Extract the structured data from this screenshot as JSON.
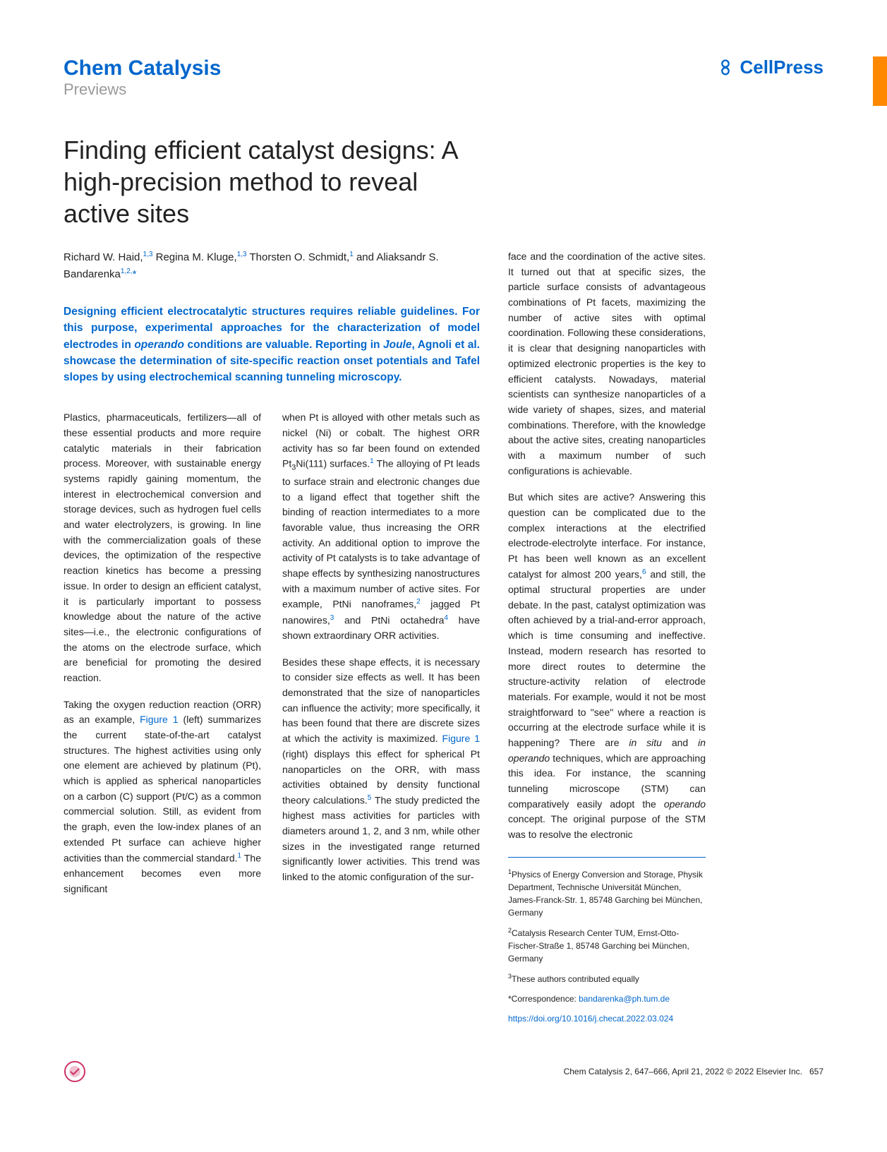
{
  "journal": {
    "name": "Chem Catalysis",
    "section": "Previews"
  },
  "publisher": "CellPress",
  "title": "Finding efficient catalyst designs: A high-precision method to reveal active sites",
  "authors_html": "Richard W. Haid,<sup>1,3</sup> Regina M. Kluge,<sup>1,3</sup> Thorsten O. Schmidt,<sup>1</sup> and Aliaksandr S. Bandarenka<sup>1,2,</sup><span class='corr'>*</span>",
  "abstract_html": "Designing efficient electrocatalytic structures requires reliable guidelines. For this purpose, experimental approaches for the characterization of model electrodes in <em>operando</em> conditions are valuable. Reporting in <em>Joule</em>, Agnoli et al. showcase the determination of site-specific reaction onset potentials and Tafel slopes by using electrochemical scanning tunneling microscopy.",
  "col1": {
    "p1": "Plastics, pharmaceuticals, fertilizers—all of these essential products and more require catalytic materials in their fabrication process. Moreover, with sustainable energy systems rapidly gaining momentum, the interest in electrochemical conversion and storage devices, such as hydrogen fuel cells and water electrolyzers, is growing. In line with the commercialization goals of these devices, the optimization of the respective reaction kinetics has become a pressing issue. In order to design an efficient catalyst, it is particularly important to possess knowledge about the nature of the active sites—i.e., the electronic configurations of the atoms on the electrode surface, which are beneficial for promoting the desired reaction.",
    "p2_html": "Taking the oxygen reduction reaction (ORR) as an example, <span class='figref'>Figure 1</span> (left) summarizes the current state-of-the-art catalyst structures. The highest activities using only one element are achieved by platinum (Pt), which is applied as spherical nanoparticles on a carbon (C) support (Pt/C) as a common commercial solution. Still, as evident from the graph, even the low-index planes of an extended Pt surface can achieve higher activities than the commercial standard.<span class='citeref'>1</span> The enhancement becomes even more significant"
  },
  "col2": {
    "p1_html": "when Pt is alloyed with other metals such as nickel (Ni) or cobalt. The highest ORR activity has so far been found on extended Pt<sub>3</sub>Ni(111) surfaces.<span class='citeref'>1</span> The alloying of Pt leads to surface strain and electronic changes due to a ligand effect that together shift the binding of reaction intermediates to a more favorable value, thus increasing the ORR activity. An additional option to improve the activity of Pt catalysts is to take advantage of shape effects by synthesizing nanostructures with a maximum number of active sites. For example, PtNi nanoframes,<span class='citeref'>2</span> jagged Pt nanowires,<span class='citeref'>3</span> and PtNi octahedra<span class='citeref'>4</span> have shown extraordinary ORR activities.",
    "p2_html": "Besides these shape effects, it is necessary to consider size effects as well. It has been demonstrated that the size of nanoparticles can influence the activity; more specifically, it has been found that there are discrete sizes at which the activity is maximized. <span class='figref'>Figure 1</span> (right) displays this effect for spherical Pt nanoparticles on the ORR, with mass activities obtained by density functional theory calculations.<span class='citeref'>5</span> The study predicted the highest mass activities for particles with diameters around 1, 2, and 3 nm, while other sizes in the investigated range returned significantly lower activities. This trend was linked to the atomic configuration of the sur-"
  },
  "rightcol": {
    "p1": "face and the coordination of the active sites. It turned out that at specific sizes, the particle surface consists of advantageous combinations of Pt facets, maximizing the number of active sites with optimal coordination. Following these considerations, it is clear that designing nanoparticles with optimized electronic properties is the key to efficient catalysts. Nowadays, material scientists can synthesize nanoparticles of a wide variety of shapes, sizes, and material combinations. Therefore, with the knowledge about the active sites, creating nanoparticles with a maximum number of such configurations is achievable.",
    "p2_html": "But which sites are active? Answering this question can be complicated due to the complex interactions at the electrified electrode-electrolyte interface. For instance, Pt has been well known as an excellent catalyst for almost 200 years,<span class='citeref'>6</span> and still, the optimal structural properties are under debate. In the past, catalyst optimization was often achieved by a trial-and-error approach, which is time consuming and ineffective. Instead, modern research has resorted to more direct routes to determine the structure-activity relation of electrode materials. For example, would it not be most straightforward to \"see\" where a reaction is occurring at the electrode surface while it is happening? There are <em>in situ</em> and <em>in operando</em> techniques, which are approaching this idea. For instance, the scanning tunneling microscope (STM) can comparatively easily adopt the <em>operando</em> concept. The original purpose of the STM was to resolve the electronic"
  },
  "affiliations": {
    "a1_html": "<sup>1</sup>Physics of Energy Conversion and Storage, Physik Department, Technische Universität München, James-Franck-Str. 1, 85748 Garching bei München, Germany",
    "a2_html": "<sup>2</sup>Catalysis Research Center TUM, Ernst-Otto-Fischer-Straße 1, 85748 Garching bei München, Germany",
    "a3_html": "<sup>3</sup>These authors contributed equally",
    "corr_html": "*Correspondence: <span class='email'>bandarenka@ph.tum.de</span>",
    "doi_html": "<span class='doi'>https://doi.org/10.1016/j.checat.2022.03.024</span>"
  },
  "footer": {
    "citation": "Chem Catalysis 2, 647–666, April 21, 2022 © 2022 Elsevier Inc.",
    "page": "657"
  },
  "colors": {
    "brand": "#0066cc",
    "orange": "#ff8800",
    "gray": "#999999"
  }
}
